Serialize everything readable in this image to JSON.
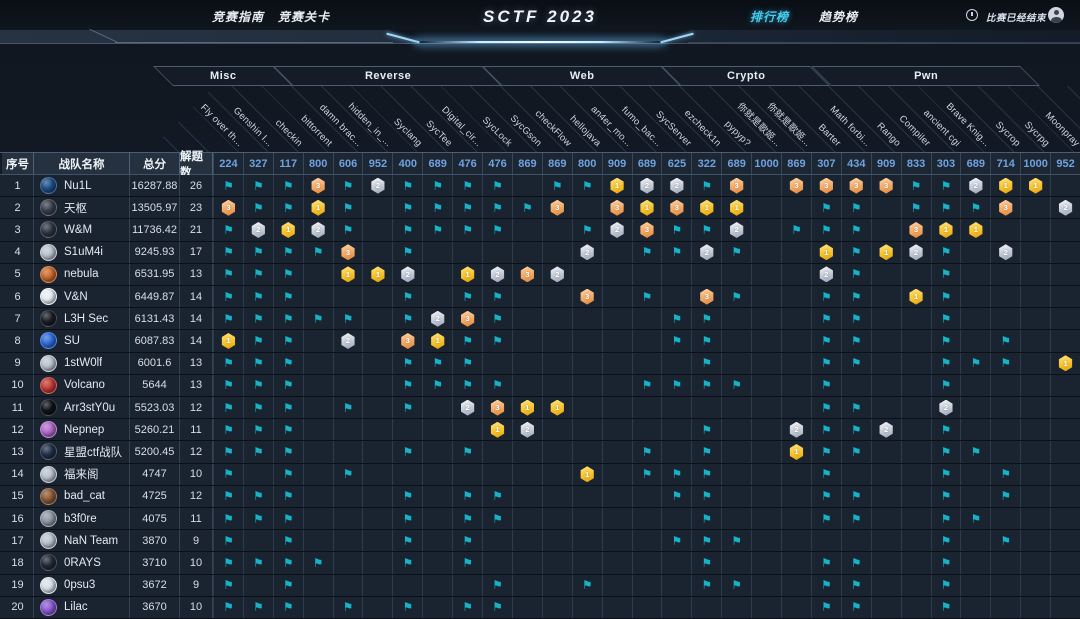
{
  "nav": {
    "logo": "SCTF 2023",
    "left_items": [
      "竞赛指南",
      "竞赛关卡"
    ],
    "right_items": [
      "排行榜",
      "趋势榜"
    ],
    "active_item": "排行榜",
    "status_label": "比赛已经结束"
  },
  "table_headers": {
    "rank": "序号",
    "team": "战队名称",
    "score": "总分",
    "solved": "解题数"
  },
  "categories": [
    {
      "name": "Misc",
      "challenge_count": 4
    },
    {
      "name": "Reverse",
      "challenge_count": 7
    },
    {
      "name": "Web",
      "challenge_count": 6
    },
    {
      "name": "Crypto",
      "challenge_count": 5
    },
    {
      "name": "Pwn",
      "challenge_count": 7
    }
  ],
  "challenges": [
    {
      "name": "Fly over th...",
      "points": 224
    },
    {
      "name": "Genshin I...",
      "points": 327
    },
    {
      "name": "checkin",
      "points": 117
    },
    {
      "name": "bittorrent",
      "points": 800
    },
    {
      "name": "damn brac...",
      "points": 606
    },
    {
      "name": "hidden_in_...",
      "points": 952
    },
    {
      "name": "Syclang",
      "points": 400
    },
    {
      "name": "SycTee",
      "points": 689
    },
    {
      "name": "Digital_cir...",
      "points": 476
    },
    {
      "name": "SycLock",
      "points": 476
    },
    {
      "name": "SycGson",
      "points": 869
    },
    {
      "name": "checkFlow",
      "points": 869
    },
    {
      "name": "hellojava",
      "points": 800
    },
    {
      "name": "an4er_mo...",
      "points": 909
    },
    {
      "name": "fumo_bac...",
      "points": 689
    },
    {
      "name": "SycServer",
      "points": 625
    },
    {
      "name": "ezcheck1n",
      "points": 322
    },
    {
      "name": "pypyp?",
      "points": 689
    },
    {
      "name": "你就是歌姬...",
      "points": 1000
    },
    {
      "name": "你就是歌姬...",
      "points": 869
    },
    {
      "name": "Barter",
      "points": 307
    },
    {
      "name": "Math forbi...",
      "points": 434
    },
    {
      "name": "Rango",
      "points": 909
    },
    {
      "name": "Compiler",
      "points": 833
    },
    {
      "name": "ancient cgi",
      "points": 303
    },
    {
      "name": "Brave Knig...",
      "points": 689
    },
    {
      "name": "Sycrop",
      "points": 714
    },
    {
      "name": "Sycrpg",
      "points": 1000
    },
    {
      "name": "Moonpray",
      "points": 952
    }
  ],
  "cell_legend": {
    "f": "solved-flag",
    "1": "first-blood-gold",
    "2": "second-blood-silver",
    "3": "third-blood-bronze",
    "-": "unsolved"
  },
  "colors": {
    "accent": "#45cdf0",
    "flag": "#16b2c6",
    "gold": "#f5bd22",
    "silver": "#bac1cf",
    "bronze": "#f0a058",
    "points_text": "#6fa2e0"
  },
  "teams": [
    {
      "rank": 1,
      "name": "Nu1L",
      "score": "16287.88",
      "solved": 26,
      "avatar_color": "#1d4e89",
      "cells": "fff3f2ffff-ff122f3-3333ff211-"
    },
    {
      "rank": 2,
      "name": "天枢",
      "score": "13505.97",
      "solved": 23,
      "avatar_color": "#3a3f4d",
      "cells": "3ff1f-fffff3-31311--ff-fff3-2"
    },
    {
      "rank": 3,
      "name": "W&M",
      "score": "11736.42",
      "solved": 21,
      "avatar_color": "#2e3642",
      "cells": "f212f-ffff--f23ff2-fff-311---"
    },
    {
      "rank": 4,
      "name": "S1uM4i",
      "score": "9245.93",
      "solved": 17,
      "avatar_color": "#b9c2cc",
      "cells": "ffff3-f-----2-ff2f--1f12f-2--"
    },
    {
      "rank": 5,
      "name": "nebula",
      "score": "6531.95",
      "solved": 13,
      "avatar_color": "#c96a2e",
      "cells": "fff-112-1232--------2f--f----"
    },
    {
      "rank": 6,
      "name": "V&N",
      "score": "6449.87",
      "solved": 14,
      "avatar_color": "#e6ecf2",
      "cells": "fff---f-ff--3-f-3f--ff-1f----"
    },
    {
      "rank": 7,
      "name": "L3H Sec",
      "score": "6131.43",
      "solved": 14,
      "avatar_color": "#181c24",
      "cells": "fffff-f23f-----ff---ff--f----"
    },
    {
      "rank": 8,
      "name": "SU",
      "score": "6087.83",
      "solved": 14,
      "avatar_color": "#2f6bd8",
      "cells": "1ff-2-31ff-----ff---ff--f-f--"
    },
    {
      "rank": 9,
      "name": "1stW0lf",
      "score": "6001.6",
      "solved": 13,
      "avatar_color": "#b9c2cc",
      "cells": "fff---fff-------f---ff--fff-1"
    },
    {
      "rank": 10,
      "name": "Volcano",
      "score": "5644",
      "solved": 13,
      "avatar_color": "#c23b35",
      "cells": "fff---ffff----ffff--f---f----"
    },
    {
      "rank": 11,
      "name": "Arr3stY0u",
      "score": "5523.03",
      "solved": 12,
      "avatar_color": "#0e1218",
      "cells": "fff-f-f-2311--------ff--2----"
    },
    {
      "rank": 12,
      "name": "Nepnep",
      "score": "5260.21",
      "solved": 11,
      "avatar_color": "#b06ac8",
      "cells": "fff------12-----f--2ff2-f----"
    },
    {
      "rank": 13,
      "name": "星盟ctf战队",
      "score": "5200.45",
      "solved": 12,
      "avatar_color": "#203048",
      "cells": "fff---f-f-----f-f--1ff--ff---"
    },
    {
      "rank": 14,
      "name": "福来阁",
      "score": "4747",
      "solved": 10,
      "avatar_color": "#b9c2cc",
      "cells": "f-f-f-------1-fff---f---f-f--"
    },
    {
      "rank": 15,
      "name": "bad_cat",
      "score": "4725",
      "solved": 12,
      "avatar_color": "#8a5a36",
      "cells": "fff---f-ff-----ff---ff--f-f--"
    },
    {
      "rank": 16,
      "name": "b3f0re",
      "score": "4075",
      "solved": 11,
      "avatar_color": "#8f98a4",
      "cells": "fff---f-ff------f---ff--ff---"
    },
    {
      "rank": 17,
      "name": "NaN Team",
      "score": "3870",
      "solved": 9,
      "avatar_color": "#b9c2cc",
      "cells": "f-f---f-f------fff------f-f--"
    },
    {
      "rank": 18,
      "name": "0RAYS",
      "score": "3710",
      "solved": 10,
      "avatar_color": "#232a36",
      "cells": "ffff--f-f-------f---ff--f----"
    },
    {
      "rank": 19,
      "name": "0psu3",
      "score": "3672",
      "solved": 9,
      "avatar_color": "#d8dfe8",
      "cells": "f-f------f--f---ff--ff--f----"
    },
    {
      "rank": 20,
      "name": "Lilac",
      "score": "3670",
      "solved": 10,
      "avatar_color": "#8a5ad0",
      "cells": "fff-f-f-ff----------ff--f----"
    }
  ]
}
